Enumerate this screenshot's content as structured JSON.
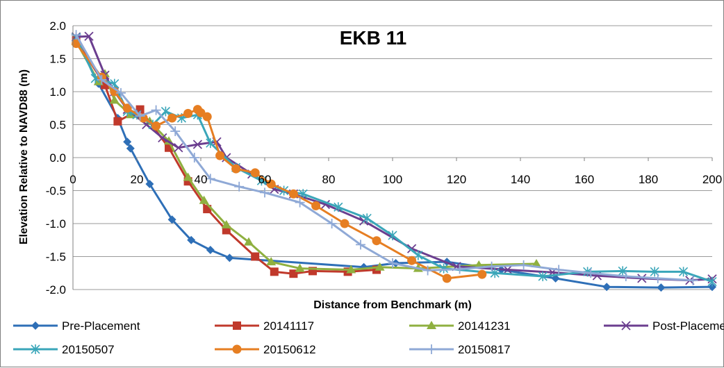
{
  "chart_data": {
    "type": "line",
    "title": "EKB 11",
    "xlabel": "Distance from Benchmark (m)",
    "ylabel": "Elevation Relative to NAVD88 (m)",
    "xlim": [
      0,
      200
    ],
    "ylim": [
      -2.0,
      2.0
    ],
    "xticks": [
      "0",
      "20",
      "40",
      "60",
      "80",
      "100",
      "120",
      "140",
      "160",
      "180",
      "200"
    ],
    "yticks": [
      "2.0",
      "1.5",
      "1.0",
      "0.5",
      "0.0",
      "-0.5",
      "-1.0",
      "-1.5",
      "-2.0"
    ],
    "grid": true,
    "legend_position": "bottom",
    "series": [
      {
        "name": "Pre-Placement",
        "color": "#2e6fb7",
        "marker": "diamond",
        "x": [
          1,
          8,
          14,
          17,
          18,
          24,
          31,
          37,
          43,
          49,
          91,
          101,
          117,
          134,
          151,
          167,
          184,
          200
        ],
        "y": [
          1.82,
          1.12,
          0.6,
          0.24,
          0.14,
          -0.4,
          -0.94,
          -1.25,
          -1.4,
          -1.52,
          -1.66,
          -1.6,
          -1.58,
          -1.7,
          -1.83,
          -1.96,
          -1.97,
          -1.96
        ]
      },
      {
        "name": "20141117",
        "color": "#c0392b",
        "marker": "square",
        "x": [
          1,
          10,
          14,
          21,
          30,
          36,
          42,
          48,
          57,
          63,
          69,
          75,
          86,
          95
        ],
        "y": [
          1.78,
          1.1,
          0.55,
          0.73,
          0.15,
          -0.36,
          -0.78,
          -1.1,
          -1.5,
          -1.73,
          -1.76,
          -1.72,
          -1.73,
          -1.7
        ]
      },
      {
        "name": "20141231",
        "color": "#8fb040",
        "marker": "triangle",
        "x": [
          1,
          8,
          10,
          13,
          18,
          24,
          30,
          36,
          41,
          48,
          55,
          62,
          71,
          87,
          96,
          108,
          127,
          145
        ],
        "y": [
          1.76,
          1.15,
          1.27,
          0.87,
          0.65,
          0.55,
          0.25,
          -0.3,
          -0.65,
          -1.02,
          -1.28,
          -1.58,
          -1.68,
          -1.7,
          -1.66,
          -1.68,
          -1.63,
          -1.61
        ]
      },
      {
        "name": "Post-Placement",
        "color": "#6b3e8f",
        "marker": "x",
        "x": [
          1,
          5,
          10,
          13,
          17,
          23,
          28,
          33,
          39,
          45,
          48,
          56,
          63,
          69,
          79,
          91,
          106,
          120,
          136,
          150,
          164,
          178,
          193,
          200
        ],
        "y": [
          1.83,
          1.84,
          1.25,
          1.0,
          0.73,
          0.5,
          0.3,
          0.15,
          0.2,
          0.24,
          0.0,
          -0.25,
          -0.48,
          -0.55,
          -0.71,
          -0.96,
          -1.38,
          -1.65,
          -1.7,
          -1.74,
          -1.79,
          -1.83,
          -1.86,
          -1.84
        ]
      },
      {
        "name": "20150507",
        "color": "#3aa6b9",
        "marker": "asterisk",
        "x": [
          1,
          7,
          13,
          17,
          20,
          25,
          29,
          34,
          39,
          43,
          51,
          59,
          66,
          72,
          83,
          92,
          100,
          108,
          116,
          132,
          147,
          161,
          172,
          182,
          191,
          200
        ],
        "y": [
          1.82,
          1.2,
          1.12,
          0.7,
          0.65,
          0.5,
          0.7,
          0.6,
          0.65,
          0.22,
          -0.15,
          -0.35,
          -0.5,
          -0.55,
          -0.75,
          -0.92,
          -1.18,
          -1.48,
          -1.68,
          -1.75,
          -1.8,
          -1.73,
          -1.72,
          -1.73,
          -1.73,
          -1.88
        ]
      },
      {
        "name": "20150612",
        "color": "#e67e22",
        "marker": "circle",
        "x": [
          1,
          9,
          13,
          17,
          22,
          26,
          31,
          36,
          39,
          40,
          42,
          46,
          51,
          57,
          62,
          69,
          76,
          85,
          95,
          106,
          117,
          128
        ],
        "y": [
          1.73,
          1.22,
          1.0,
          0.75,
          0.6,
          0.48,
          0.6,
          0.67,
          0.73,
          0.68,
          0.62,
          0.03,
          -0.17,
          -0.23,
          -0.4,
          -0.55,
          -0.73,
          -1.0,
          -1.26,
          -1.56,
          -1.83,
          -1.77
        ]
      },
      {
        "name": "20150817",
        "color": "#8fa9d6",
        "marker": "plus",
        "x": [
          1,
          9,
          15,
          21,
          26,
          32,
          38,
          43,
          52,
          60,
          71,
          81,
          90,
          100,
          111,
          121,
          131,
          141,
          152,
          162,
          173,
          183,
          194
        ],
        "y": [
          1.86,
          1.18,
          0.98,
          0.63,
          0.72,
          0.4,
          0.0,
          -0.32,
          -0.44,
          -0.53,
          -0.68,
          -1.0,
          -1.32,
          -1.6,
          -1.71,
          -1.69,
          -1.65,
          -1.63,
          -1.7,
          -1.75,
          -1.8,
          -1.83,
          -1.86
        ]
      }
    ]
  }
}
